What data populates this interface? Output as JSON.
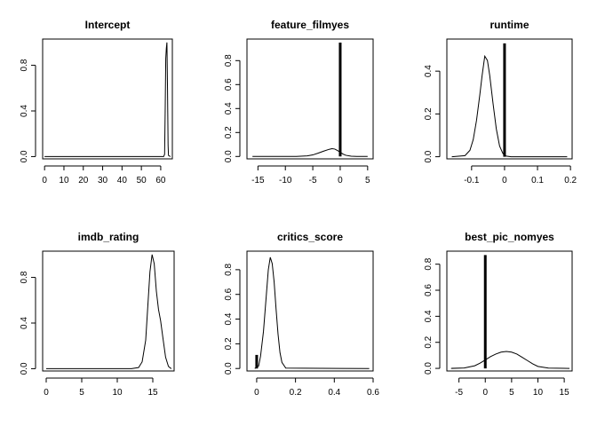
{
  "chart_data": [
    {
      "type": "line",
      "title": "Intercept",
      "xlabel": "",
      "ylabel": "",
      "xlim": [
        -1,
        66
      ],
      "ylim": [
        -0.02,
        1.03
      ],
      "xticks": [
        0,
        10,
        20,
        30,
        40,
        50,
        60
      ],
      "yticks": [
        0.0,
        0.4,
        0.8
      ],
      "grid": false,
      "series": [
        {
          "x": [
            0,
            60,
            61.5,
            62,
            62.3,
            62.6,
            62.9,
            63.2,
            63.5,
            63.8,
            64,
            65
          ],
          "y": [
            0,
            0,
            0,
            0.02,
            0.4,
            0.86,
            0.95,
            1.0,
            0.6,
            0.1,
            0.01,
            0
          ]
        }
      ],
      "spikes": []
    },
    {
      "type": "line",
      "title": "feature_filmyes",
      "xlabel": "",
      "ylabel": "",
      "xlim": [
        -17,
        6
      ],
      "ylim": [
        -0.02,
        0.98
      ],
      "xticks": [
        -15,
        -10,
        -5,
        0,
        5
      ],
      "yticks": [
        0.0,
        0.2,
        0.4,
        0.6,
        0.8
      ],
      "grid": false,
      "series": [
        {
          "x": [
            -16,
            -8,
            -6,
            -5,
            -4,
            -3,
            -2,
            -1.5,
            -1,
            -0.5,
            0,
            0.5,
            1,
            2,
            3,
            5
          ],
          "y": [
            0,
            0,
            0.005,
            0.013,
            0.028,
            0.045,
            0.06,
            0.065,
            0.062,
            0.05,
            0.035,
            0.02,
            0.01,
            0.002,
            0,
            0
          ]
        }
      ],
      "spikes": [
        {
          "x": 0,
          "y": 0.95
        }
      ]
    },
    {
      "type": "line",
      "title": "runtime",
      "xlabel": "",
      "ylabel": "",
      "xlim": [
        -0.175,
        0.205
      ],
      "ylim": [
        -0.01,
        0.55
      ],
      "xticks": [
        -0.1,
        0.0,
        0.1,
        0.2
      ],
      "yticks": [
        0.0,
        0.2,
        0.4
      ],
      "grid": false,
      "series": [
        {
          "x": [
            -0.16,
            -0.12,
            -0.105,
            -0.095,
            -0.085,
            -0.075,
            -0.068,
            -0.06,
            -0.052,
            -0.045,
            -0.035,
            -0.025,
            -0.015,
            -0.005,
            0.005,
            0.02,
            0.19
          ],
          "y": [
            0,
            0.005,
            0.03,
            0.08,
            0.17,
            0.29,
            0.38,
            0.47,
            0.45,
            0.38,
            0.25,
            0.13,
            0.05,
            0.015,
            0.003,
            0,
            0
          ]
        }
      ],
      "spikes": [
        {
          "x": 0,
          "y": 0.53
        }
      ]
    },
    {
      "type": "line",
      "title": "imdb_rating",
      "xlabel": "",
      "ylabel": "",
      "xlim": [
        -0.5,
        18
      ],
      "ylim": [
        -0.02,
        1.03
      ],
      "xticks": [
        0,
        5,
        10,
        15
      ],
      "yticks": [
        0.0,
        0.4,
        0.8
      ],
      "grid": false,
      "series": [
        {
          "x": [
            0,
            12,
            13,
            13.5,
            14,
            14.3,
            14.6,
            14.9,
            15.2,
            15.5,
            15.8,
            16.1,
            16.4,
            16.8,
            17.2,
            17.6
          ],
          "y": [
            0,
            0,
            0.01,
            0.06,
            0.25,
            0.55,
            0.85,
            1.0,
            0.92,
            0.68,
            0.52,
            0.42,
            0.28,
            0.1,
            0.02,
            0
          ]
        }
      ],
      "spikes": []
    },
    {
      "type": "line",
      "title": "critics_score",
      "xlabel": "",
      "ylabel": "",
      "xlim": [
        -0.05,
        0.6
      ],
      "ylim": [
        -0.02,
        0.95
      ],
      "xticks": [
        0.0,
        0.2,
        0.4,
        0.6
      ],
      "yticks": [
        0.0,
        0.2,
        0.4,
        0.6,
        0.8
      ],
      "grid": false,
      "series": [
        {
          "x": [
            -0.01,
            0.01,
            0.02,
            0.035,
            0.05,
            0.06,
            0.07,
            0.08,
            0.09,
            0.1,
            0.11,
            0.12,
            0.13,
            0.15,
            0.58
          ],
          "y": [
            0,
            0.02,
            0.1,
            0.3,
            0.6,
            0.8,
            0.9,
            0.85,
            0.7,
            0.48,
            0.28,
            0.13,
            0.05,
            0.003,
            0
          ]
        }
      ],
      "spikes": [
        {
          "x": 0,
          "y": 0.11
        }
      ]
    },
    {
      "type": "line",
      "title": "best_pic_nomyes",
      "xlabel": "",
      "ylabel": "",
      "xlim": [
        -7.3,
        16.5
      ],
      "ylim": [
        -0.02,
        0.9
      ],
      "xticks": [
        -5,
        0,
        5,
        10,
        15
      ],
      "yticks": [
        0.0,
        0.2,
        0.4,
        0.6,
        0.8
      ],
      "grid": false,
      "series": [
        {
          "x": [
            -6.5,
            -4,
            -2,
            -1,
            0,
            1,
            2,
            3,
            4,
            5,
            6,
            7,
            8,
            9,
            10,
            12,
            16
          ],
          "y": [
            0,
            0.003,
            0.02,
            0.04,
            0.065,
            0.09,
            0.11,
            0.125,
            0.13,
            0.125,
            0.11,
            0.085,
            0.06,
            0.035,
            0.015,
            0.002,
            0
          ]
        }
      ],
      "spikes": [
        {
          "x": 0,
          "y": 0.87
        }
      ]
    }
  ]
}
